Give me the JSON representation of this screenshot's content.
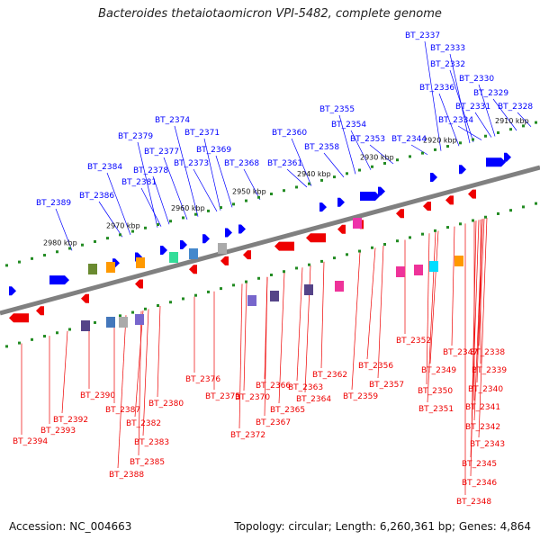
{
  "title": "Bacteroides thetaiotaomicron VPI-5482, complete genome",
  "footer": {
    "accession": "Accession: NC_004663",
    "summary": "Topology: circular; Length: 6,260,361 bp; Genes: 4,864"
  },
  "colors": {
    "forward": "#0000ff",
    "reverse": "#ee0000",
    "backbone": "#808080",
    "ticks": "#228b22"
  },
  "kbp_labels": [
    "2910 kbp",
    "2920 kbp",
    "2930 kbp",
    "2940 kbp",
    "2950 kbp",
    "2960 kbp",
    "2970 kbp",
    "2980 kbp"
  ],
  "top_genes": [
    "BT_2337",
    "BT_2333",
    "BT_2332",
    "BT_2330",
    "BT_2336",
    "BT_2329",
    "BT_2331",
    "BT_2328",
    "BT_2334",
    "BT_2355",
    "BT_2354",
    "BT_2374",
    "BT_2371",
    "BT_2360",
    "BT_2353",
    "BT_2344",
    "BT_2379",
    "BT_2377",
    "BT_2369",
    "BT_2358",
    "BT_2373",
    "BT_2368",
    "BT_2361",
    "BT_2384",
    "BT_2378",
    "BT_2381",
    "BT_2386",
    "BT_2389"
  ],
  "bottom_genes": [
    "BT_2352",
    "BT_2347",
    "BT_2338",
    "BT_2349",
    "BT_2339",
    "BT_2350",
    "BT_2340",
    "BT_2356",
    "BT_2341",
    "BT_2362",
    "BT_2357",
    "BT_2351",
    "BT_2376",
    "BT_2366",
    "BT_2363",
    "BT_2342",
    "BT_2375",
    "BT_2370",
    "BT_2364",
    "BT_2359",
    "BT_2390",
    "BT_2380",
    "BT_2365",
    "BT_2343",
    "BT_2387",
    "BT_2367",
    "BT_2392",
    "BT_2382",
    "BT_2393",
    "BT_2372",
    "BT_2383",
    "BT_2345",
    "BT_2394",
    "BT_2385",
    "BT_2346",
    "BT_2388",
    "BT_2348"
  ]
}
